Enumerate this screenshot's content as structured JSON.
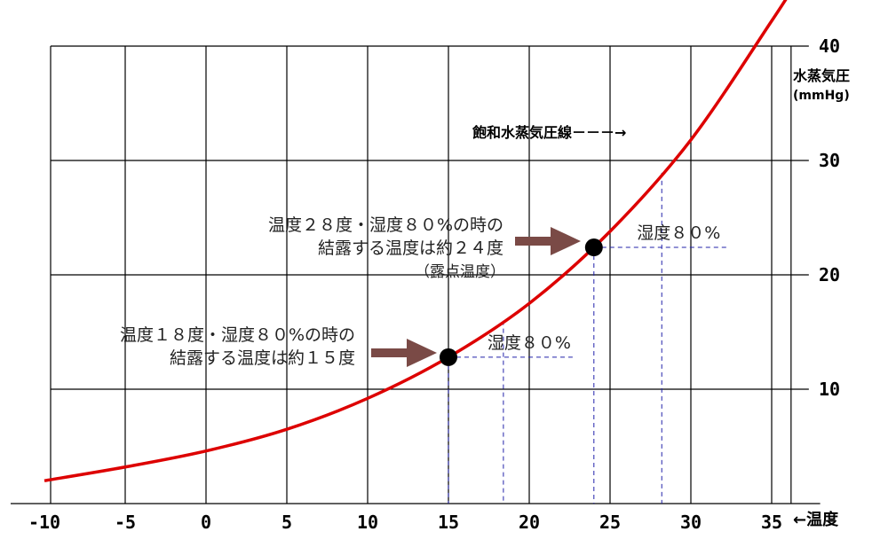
{
  "chart_data": {
    "type": "line",
    "xlabel": "←温度",
    "ylabel": "水蒸気圧",
    "ylabel_unit": "(mmHg)",
    "xlim": [
      -10,
      38
    ],
    "ylim": [
      0,
      40
    ],
    "x_ticks": [
      "-10",
      "-5",
      "0",
      "5",
      "10",
      "15",
      "20",
      "25",
      "30",
      "35"
    ],
    "y_ticks": [
      "10",
      "20",
      "30",
      "40"
    ],
    "grid": true,
    "series": [
      {
        "name": "飽和水蒸気圧線",
        "color": "#dd0000",
        "x": [
          -10,
          -5,
          0,
          5,
          10,
          15,
          20,
          25,
          30,
          35,
          36.5
        ],
        "y": [
          2.0,
          3.2,
          4.6,
          6.5,
          9.2,
          12.8,
          17.5,
          23.8,
          31.8,
          42.2,
          45.5
        ]
      }
    ],
    "curve_label": "飽和水蒸気圧線－－－→",
    "points": [
      {
        "x": 15,
        "y": 12.8,
        "ref_x": 18.4,
        "label": "湿度８０%"
      },
      {
        "x": 24,
        "y": 22.4,
        "ref_x": 28.2,
        "label": "湿度８０%"
      }
    ],
    "annotations": [
      {
        "lines": [
          "温度１８度・湿度８０%の時の",
          "結露する温度は約１５度"
        ]
      },
      {
        "lines": [
          "温度２８度・湿度８０%の時の",
          "結露する温度は約２４度",
          "（露点温度）"
        ]
      }
    ]
  }
}
